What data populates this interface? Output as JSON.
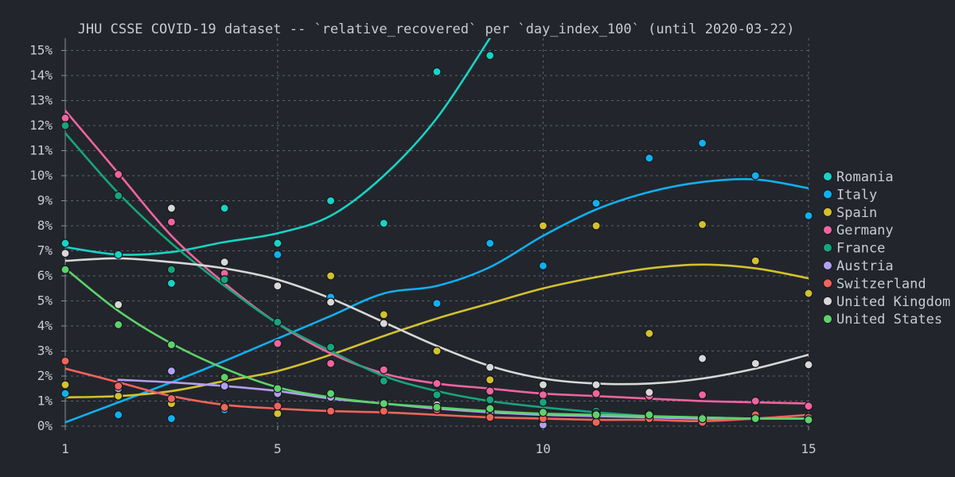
{
  "chart_data": {
    "type": "scatter",
    "title": "JHU CSSE COVID-19 dataset -- `relative_recovered` per `day_index_100` (until 2020-03-22)",
    "xlabel": "",
    "ylabel": "",
    "xlim": [
      1,
      15
    ],
    "ylim": [
      0,
      15.5
    ],
    "x_ticks": [
      1,
      5,
      10,
      15
    ],
    "y_ticks": [
      0,
      1,
      2,
      3,
      4,
      5,
      6,
      7,
      8,
      9,
      10,
      11,
      12,
      13,
      14,
      15
    ],
    "y_tick_suffix": "%",
    "grid": true,
    "legend_position": "right",
    "series": [
      {
        "name": "Romania",
        "color": "#19d3c5",
        "points": [
          [
            1,
            7.3
          ],
          [
            2,
            6.85
          ],
          [
            3,
            5.7
          ],
          [
            4,
            8.7
          ],
          [
            5,
            7.3
          ],
          [
            6,
            9.0
          ],
          [
            7,
            8.1
          ],
          [
            8,
            14.15
          ],
          [
            9,
            14.8
          ]
        ],
        "trend": [
          [
            1,
            7.15
          ],
          [
            2,
            6.85
          ],
          [
            3,
            6.95
          ],
          [
            4,
            7.35
          ],
          [
            5,
            7.7
          ],
          [
            6,
            8.4
          ],
          [
            7,
            10.0
          ],
          [
            8,
            12.3
          ],
          [
            9,
            15.5
          ]
        ]
      },
      {
        "name": "Italy",
        "color": "#10b0f0",
        "points": [
          [
            1,
            1.3
          ],
          [
            2,
            0.45
          ],
          [
            3,
            0.3
          ],
          [
            4,
            0.65
          ],
          [
            5,
            6.85
          ],
          [
            6,
            5.15
          ],
          [
            7,
            4.05
          ],
          [
            8,
            4.9
          ],
          [
            9,
            7.3
          ],
          [
            10,
            6.4
          ],
          [
            11,
            8.9
          ],
          [
            12,
            10.7
          ],
          [
            13,
            11.3
          ],
          [
            14,
            10.0
          ],
          [
            15,
            8.4
          ]
        ],
        "trend": [
          [
            1,
            0.15
          ],
          [
            2,
            0.95
          ],
          [
            3,
            1.75
          ],
          [
            4,
            2.6
          ],
          [
            5,
            3.5
          ],
          [
            6,
            4.4
          ],
          [
            7,
            5.3
          ],
          [
            8,
            5.6
          ],
          [
            9,
            6.35
          ],
          [
            10,
            7.6
          ],
          [
            11,
            8.65
          ],
          [
            12,
            9.35
          ],
          [
            13,
            9.75
          ],
          [
            14,
            9.85
          ],
          [
            15,
            9.5
          ]
        ]
      },
      {
        "name": "Spain",
        "color": "#d3c12d",
        "points": [
          [
            1,
            1.65
          ],
          [
            2,
            1.2
          ],
          [
            3,
            0.9
          ],
          [
            4,
            0.8
          ],
          [
            5,
            0.5
          ],
          [
            6,
            6.0
          ],
          [
            7,
            4.45
          ],
          [
            8,
            3.0
          ],
          [
            9,
            1.85
          ],
          [
            10,
            8.0
          ],
          [
            11,
            8.0
          ],
          [
            12,
            3.7
          ],
          [
            13,
            8.05
          ],
          [
            14,
            6.6
          ],
          [
            15,
            5.3
          ]
        ],
        "trend": [
          [
            1,
            1.15
          ],
          [
            2,
            1.2
          ],
          [
            3,
            1.4
          ],
          [
            4,
            1.8
          ],
          [
            5,
            2.2
          ],
          [
            6,
            2.85
          ],
          [
            7,
            3.6
          ],
          [
            8,
            4.3
          ],
          [
            9,
            4.9
          ],
          [
            10,
            5.5
          ],
          [
            11,
            5.95
          ],
          [
            12,
            6.3
          ],
          [
            13,
            6.45
          ],
          [
            14,
            6.3
          ],
          [
            15,
            5.9
          ]
        ]
      },
      {
        "name": "Germany",
        "color": "#f064a0",
        "points": [
          [
            1,
            12.3
          ],
          [
            2,
            10.05
          ],
          [
            3,
            8.15
          ],
          [
            4,
            6.1
          ],
          [
            5,
            3.3
          ],
          [
            6,
            2.5
          ],
          [
            7,
            2.25
          ],
          [
            8,
            1.7
          ],
          [
            9,
            1.4
          ],
          [
            10,
            1.25
          ],
          [
            11,
            1.3
          ],
          [
            12,
            1.2
          ],
          [
            13,
            1.25
          ],
          [
            14,
            1.0
          ],
          [
            15,
            0.8
          ]
        ],
        "trend": [
          [
            1,
            12.6
          ],
          [
            2,
            10.1
          ],
          [
            3,
            7.6
          ],
          [
            4,
            5.7
          ],
          [
            5,
            4.1
          ],
          [
            6,
            2.9
          ],
          [
            7,
            2.1
          ],
          [
            8,
            1.7
          ],
          [
            9,
            1.5
          ],
          [
            10,
            1.3
          ],
          [
            11,
            1.2
          ],
          [
            12,
            1.1
          ],
          [
            13,
            1.0
          ],
          [
            14,
            0.95
          ],
          [
            15,
            0.9
          ]
        ]
      },
      {
        "name": "France",
        "color": "#17a57a",
        "points": [
          [
            1,
            12.0
          ],
          [
            2,
            9.2
          ],
          [
            3,
            6.25
          ],
          [
            4,
            5.85
          ],
          [
            5,
            4.15
          ],
          [
            6,
            3.15
          ],
          [
            7,
            1.8
          ],
          [
            8,
            1.25
          ],
          [
            9,
            1.05
          ],
          [
            10,
            0.95
          ],
          [
            11,
            0.6
          ],
          [
            12,
            0.5
          ],
          [
            13,
            0.35
          ],
          [
            14,
            0.3
          ],
          [
            15,
            0.35
          ]
        ],
        "trend": [
          [
            1,
            11.7
          ],
          [
            2,
            9.3
          ],
          [
            3,
            7.3
          ],
          [
            4,
            5.6
          ],
          [
            5,
            4.1
          ],
          [
            6,
            3.0
          ],
          [
            7,
            2.0
          ],
          [
            8,
            1.4
          ],
          [
            9,
            1.0
          ],
          [
            10,
            0.75
          ],
          [
            11,
            0.55
          ],
          [
            12,
            0.4
          ],
          [
            13,
            0.35
          ],
          [
            14,
            0.3
          ],
          [
            15,
            0.3
          ]
        ]
      },
      {
        "name": "Austria",
        "color": "#b3a0f0",
        "points": [
          [
            2,
            1.5
          ],
          [
            3,
            2.2
          ],
          [
            4,
            1.6
          ],
          [
            5,
            1.3
          ],
          [
            6,
            1.15
          ],
          [
            7,
            0.9
          ],
          [
            8,
            0.7
          ],
          [
            9,
            0.55
          ],
          [
            10,
            0.05
          ],
          [
            11,
            0.5
          ],
          [
            12,
            0.45
          ],
          [
            13,
            0.35
          ],
          [
            14,
            0.3
          ],
          [
            15,
            0.25
          ]
        ],
        "trend": [
          [
            2,
            1.85
          ],
          [
            3,
            1.75
          ],
          [
            4,
            1.6
          ],
          [
            5,
            1.4
          ],
          [
            6,
            1.1
          ],
          [
            7,
            0.9
          ],
          [
            8,
            0.7
          ],
          [
            9,
            0.55
          ],
          [
            10,
            0.45
          ],
          [
            11,
            0.4
          ],
          [
            12,
            0.35
          ],
          [
            13,
            0.3
          ],
          [
            14,
            0.3
          ],
          [
            15,
            0.3
          ]
        ]
      },
      {
        "name": "Switzerland",
        "color": "#f0645c",
        "points": [
          [
            1,
            2.6
          ],
          [
            2,
            1.6
          ],
          [
            3,
            1.1
          ],
          [
            4,
            0.75
          ],
          [
            5,
            0.8
          ],
          [
            6,
            0.6
          ],
          [
            7,
            0.6
          ],
          [
            8,
            0.65
          ],
          [
            9,
            0.35
          ],
          [
            10,
            0.3
          ],
          [
            11,
            0.15
          ],
          [
            12,
            0.3
          ],
          [
            13,
            0.15
          ],
          [
            14,
            0.45
          ],
          [
            15,
            0.35
          ]
        ],
        "trend": [
          [
            1,
            2.3
          ],
          [
            2,
            1.75
          ],
          [
            3,
            1.2
          ],
          [
            4,
            0.85
          ],
          [
            5,
            0.7
          ],
          [
            6,
            0.6
          ],
          [
            7,
            0.55
          ],
          [
            8,
            0.45
          ],
          [
            9,
            0.35
          ],
          [
            10,
            0.3
          ],
          [
            11,
            0.25
          ],
          [
            12,
            0.25
          ],
          [
            13,
            0.2
          ],
          [
            14,
            0.3
          ],
          [
            15,
            0.45
          ]
        ]
      },
      {
        "name": "United Kingdom",
        "color": "#d8d8d8",
        "points": [
          [
            1,
            6.9
          ],
          [
            2,
            4.85
          ],
          [
            3,
            8.7
          ],
          [
            4,
            6.55
          ],
          [
            5,
            5.6
          ],
          [
            6,
            4.95
          ],
          [
            7,
            4.1
          ],
          [
            8,
            0.85
          ],
          [
            9,
            2.35
          ],
          [
            10,
            1.65
          ],
          [
            11,
            1.65
          ],
          [
            12,
            1.35
          ],
          [
            13,
            2.7
          ],
          [
            14,
            2.5
          ],
          [
            15,
            2.45
          ]
        ],
        "trend": [
          [
            1,
            6.6
          ],
          [
            2,
            6.7
          ],
          [
            3,
            6.55
          ],
          [
            4,
            6.3
          ],
          [
            5,
            5.85
          ],
          [
            6,
            5.1
          ],
          [
            7,
            4.15
          ],
          [
            8,
            3.2
          ],
          [
            9,
            2.4
          ],
          [
            10,
            1.9
          ],
          [
            11,
            1.7
          ],
          [
            12,
            1.7
          ],
          [
            13,
            1.9
          ],
          [
            14,
            2.3
          ],
          [
            15,
            2.85
          ]
        ]
      },
      {
        "name": "United States",
        "color": "#5dd26c",
        "points": [
          [
            1,
            6.25
          ],
          [
            2,
            4.05
          ],
          [
            3,
            3.25
          ],
          [
            4,
            1.95
          ],
          [
            5,
            1.5
          ],
          [
            6,
            1.3
          ],
          [
            7,
            0.9
          ],
          [
            8,
            0.75
          ],
          [
            9,
            0.7
          ],
          [
            10,
            0.55
          ],
          [
            11,
            0.45
          ],
          [
            12,
            0.45
          ],
          [
            13,
            0.3
          ],
          [
            14,
            0.3
          ],
          [
            15,
            0.25
          ]
        ],
        "trend": [
          [
            1,
            6.3
          ],
          [
            2,
            4.6
          ],
          [
            3,
            3.3
          ],
          [
            4,
            2.3
          ],
          [
            5,
            1.55
          ],
          [
            6,
            1.15
          ],
          [
            7,
            0.9
          ],
          [
            8,
            0.75
          ],
          [
            9,
            0.6
          ],
          [
            10,
            0.5
          ],
          [
            11,
            0.45
          ],
          [
            12,
            0.4
          ],
          [
            13,
            0.35
          ],
          [
            14,
            0.3
          ],
          [
            15,
            0.3
          ]
        ]
      }
    ]
  }
}
